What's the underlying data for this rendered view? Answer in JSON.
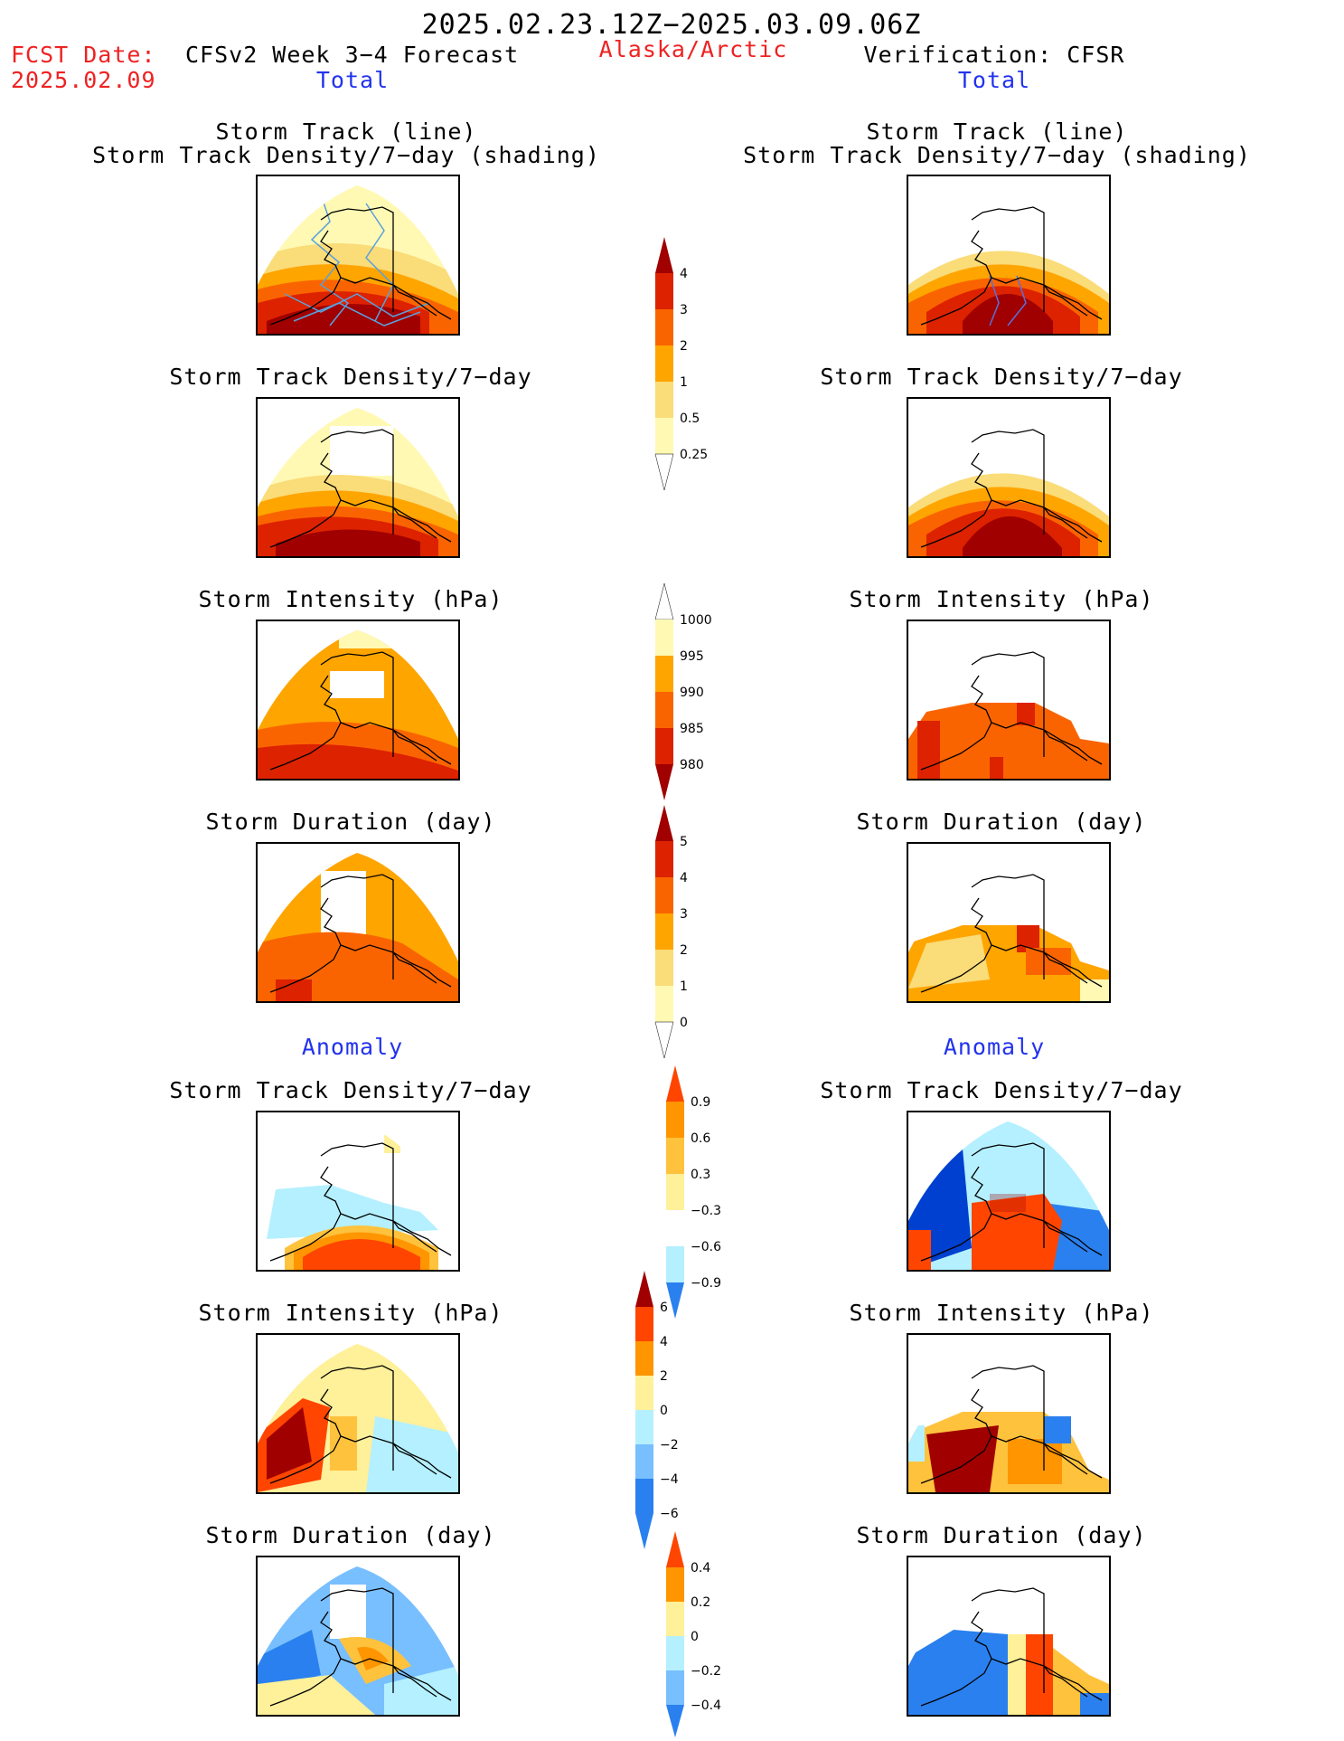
{
  "header": {
    "period": "2025.02.23.12Z−2025.03.09.06Z",
    "fcst_date_label": "FCST Date:",
    "fcst_date_value": "2025.02.09",
    "model_title": "CFSv2 Week 3−4 Forecast",
    "region": "Alaska/Arctic",
    "verification": "Verification: CFSR"
  },
  "columns": {
    "left_total": "Total",
    "right_total": "Total",
    "left_anomaly": "Anomaly",
    "right_anomaly": "Anomaly"
  },
  "panel_titles": {
    "track_line": "Storm Track (line)",
    "track_shading": "Storm Track Density/7−day (shading)",
    "density": "Storm Track Density/7−day",
    "intensity": "Storm Intensity (hPa)",
    "duration": "Storm Duration (day)"
  },
  "colorbars": {
    "density_total": [
      "4",
      "3",
      "2",
      "1",
      "0.5",
      "0.25"
    ],
    "intensity_total": [
      "1000",
      "995",
      "990",
      "985",
      "980"
    ],
    "duration_total": [
      "5",
      "4",
      "3",
      "2",
      "1",
      "0"
    ],
    "density_anomaly": [
      "0.9",
      "0.6",
      "0.3",
      "−0.3",
      "−0.6",
      "−0.9"
    ],
    "intensity_anomaly": [
      "6",
      "4",
      "2",
      "0",
      "−2",
      "−4",
      "−6"
    ],
    "duration_anomaly": [
      "0.4",
      "0.2",
      "0",
      "−0.2",
      "−0.4"
    ]
  },
  "colors": {
    "warm": [
      "#fff9b4",
      "#fadc78",
      "#ffa500",
      "#fa6400",
      "#dd2200",
      "#a00000"
    ],
    "anomaly": [
      "#0040d0",
      "#2a80ee",
      "#78bfff",
      "#b4f0ff",
      "#ffffff",
      "#fff09a",
      "#ffc23c",
      "#ff9500",
      "#ff4500",
      "#a00000"
    ],
    "storm_track_line": "#5aa0dc"
  }
}
